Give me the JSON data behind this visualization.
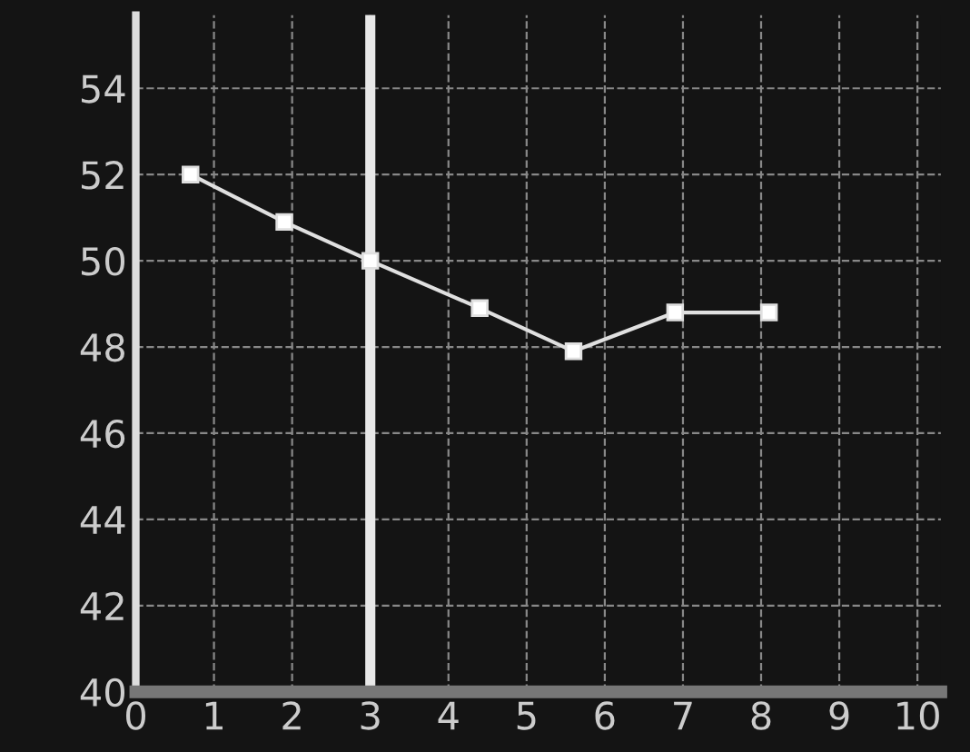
{
  "chart_data": {
    "type": "line",
    "x": [
      0.7,
      1.9,
      3,
      4.4,
      5.6,
      6.9,
      8.1
    ],
    "series": [
      {
        "color": "#e0e0e0",
        "values": [
          52,
          50.9,
          50,
          48.9,
          47.9,
          48.8,
          48.8
        ]
      }
    ],
    "xlim": [
      0,
      10.3
    ],
    "ylim": [
      40,
      55.7
    ],
    "xticks": [
      0,
      1,
      2,
      3,
      4,
      5,
      6,
      7,
      8,
      9,
      10
    ],
    "yticks": [
      40,
      42,
      44,
      46,
      48,
      50,
      52,
      54
    ],
    "ref_lines": [
      {
        "axis": "x",
        "value": 3,
        "color": "#e8e8e8"
      }
    ],
    "grid": true,
    "marker": "square",
    "line_style": "solid"
  }
}
